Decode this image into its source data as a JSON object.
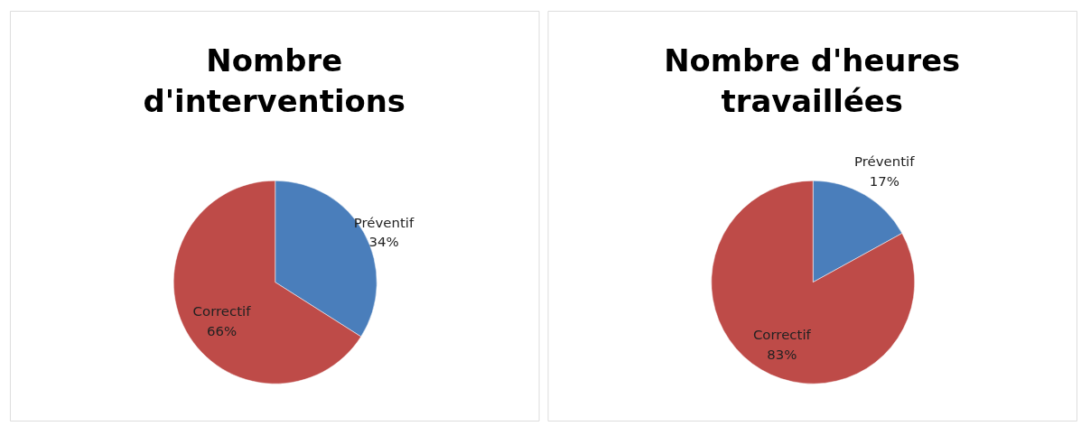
{
  "chart_data": [
    {
      "type": "pie",
      "title": "Nombre d'interventions",
      "categories": [
        "Préventif",
        "Correctif"
      ],
      "values": [
        34,
        66
      ],
      "colors": [
        "#4a7ebb",
        "#be4b48"
      ],
      "value_labels": [
        "34%",
        "66%"
      ]
    },
    {
      "type": "pie",
      "title": "Nombre d'heures travaillées",
      "categories": [
        "Préventif",
        "Correctif"
      ],
      "values": [
        17,
        83
      ],
      "colors": [
        "#4a7ebb",
        "#be4b48"
      ],
      "value_labels": [
        "17%",
        "83%"
      ]
    }
  ]
}
